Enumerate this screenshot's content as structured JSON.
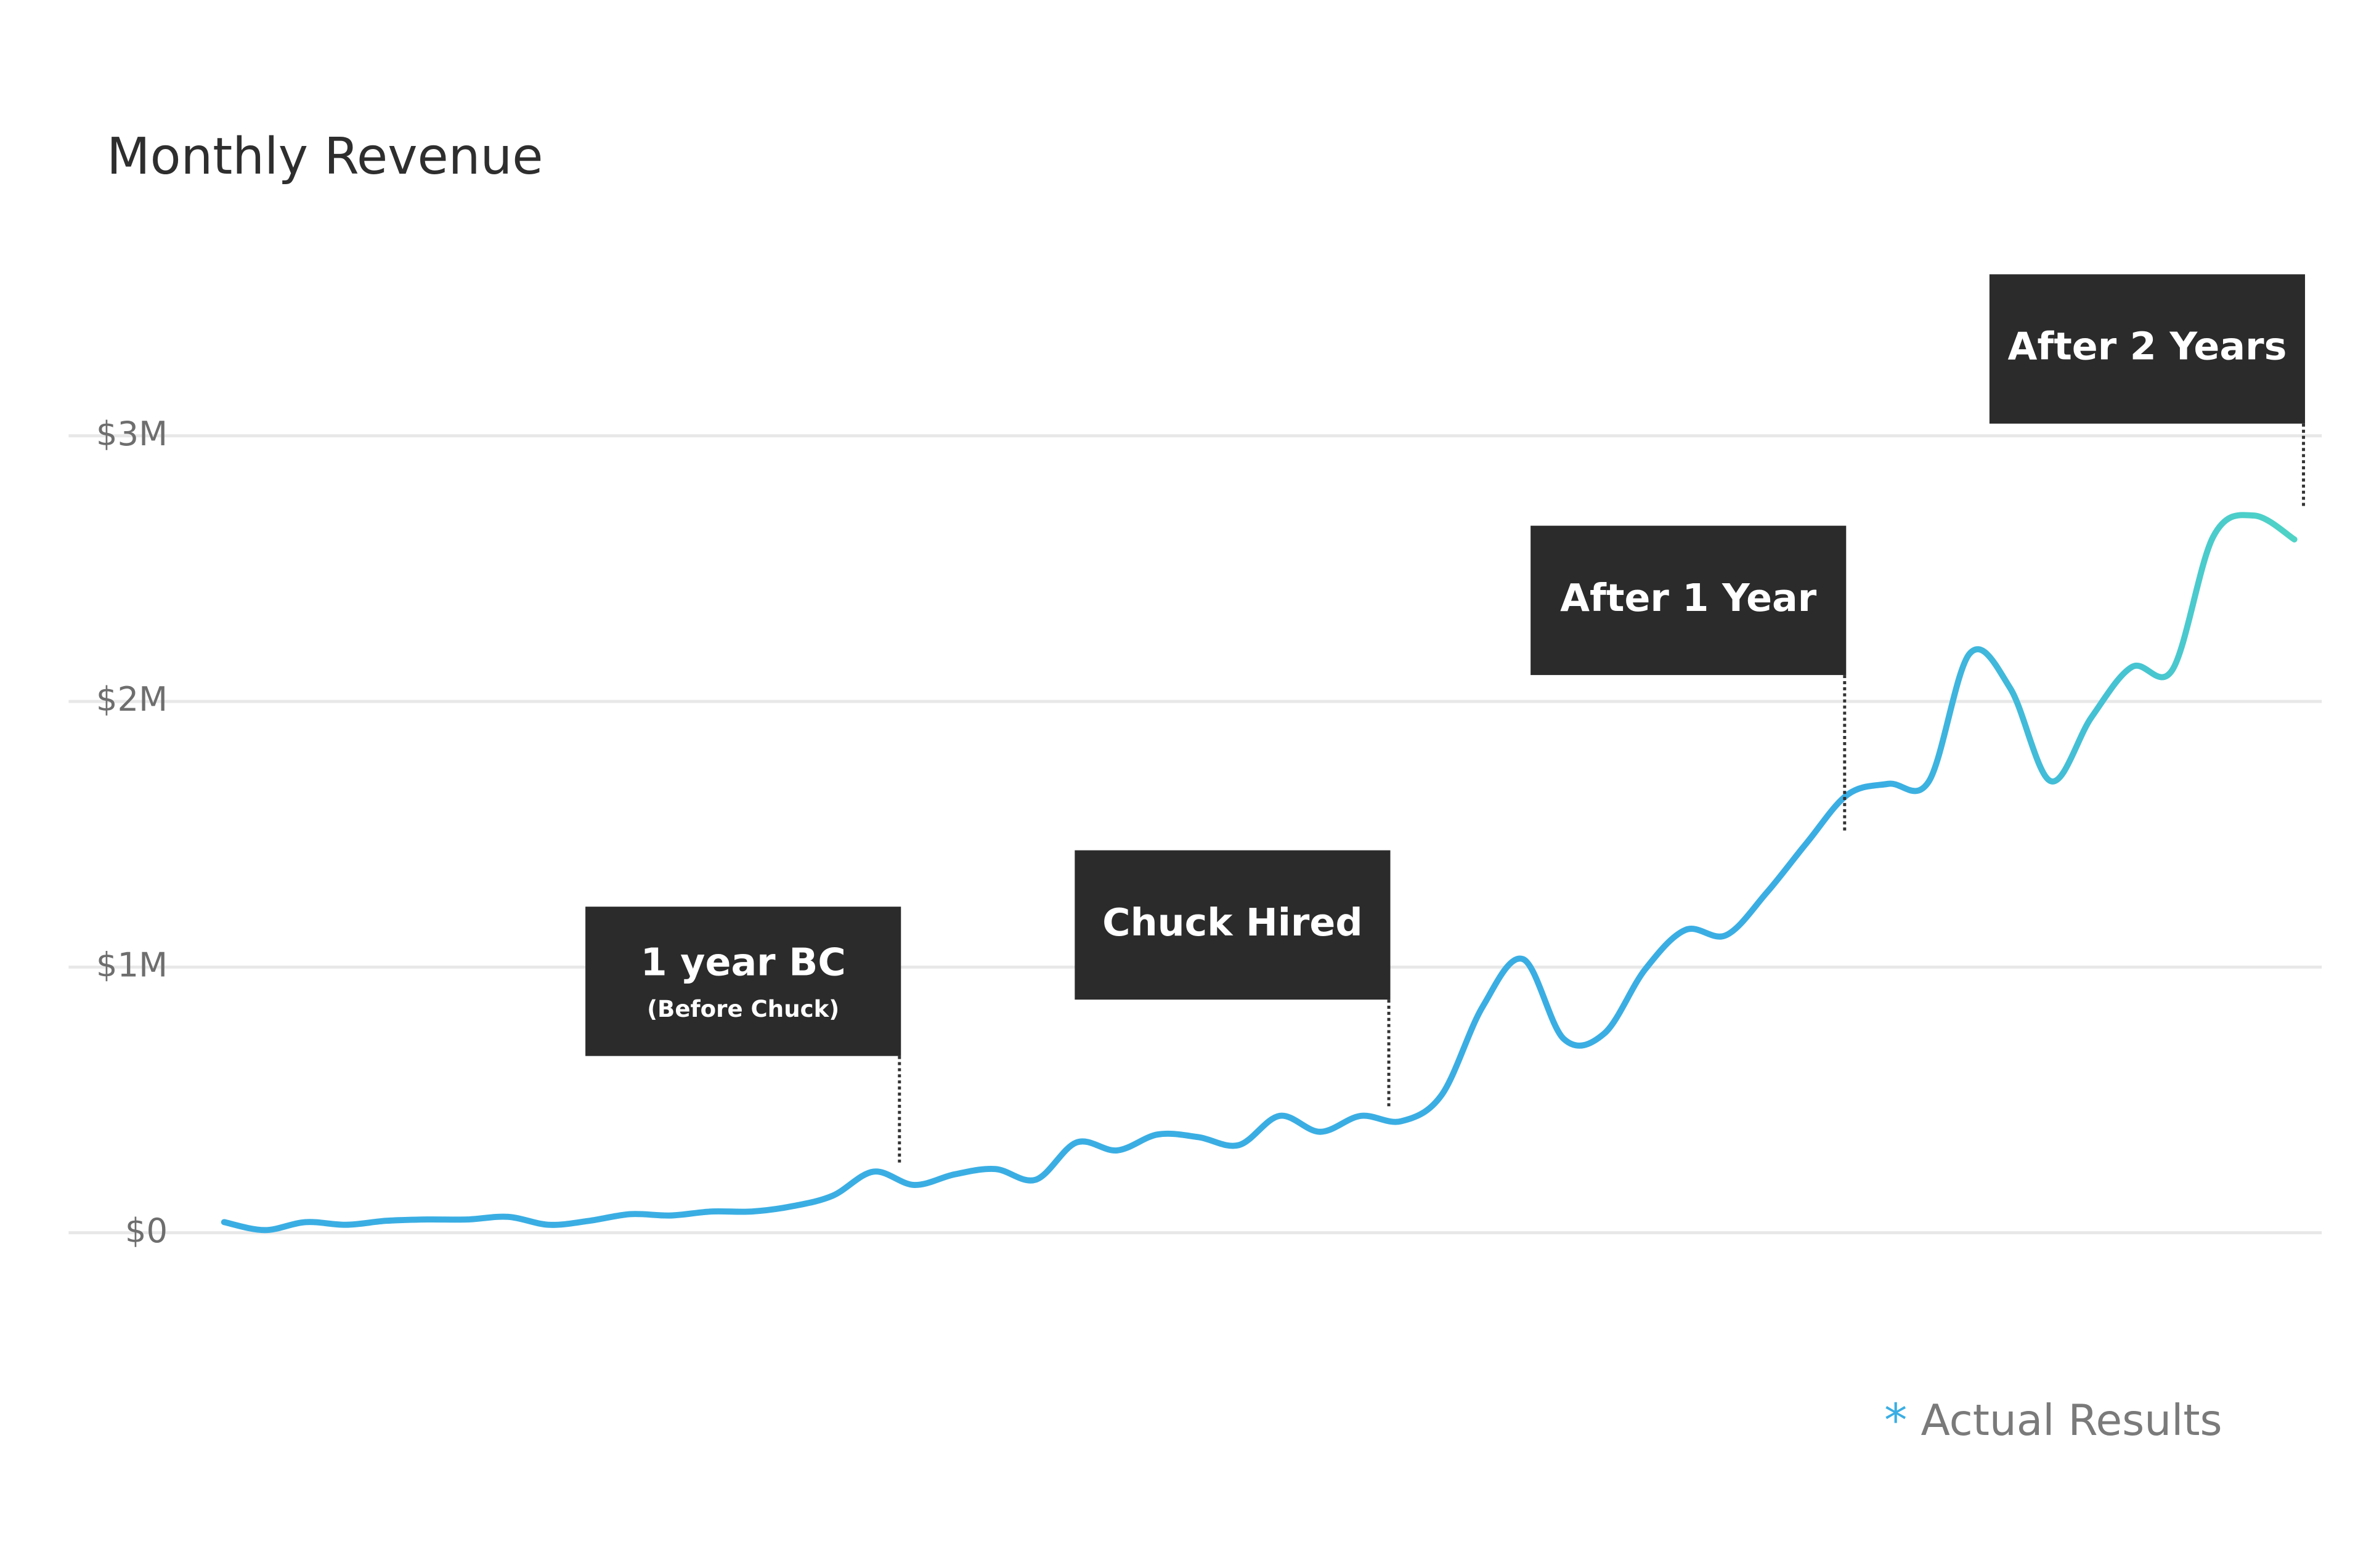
{
  "chart_data": {
    "type": "line",
    "title": "Monthly Revenue",
    "values": [
      40000,
      10000,
      40000,
      30000,
      45000,
      50000,
      50000,
      60000,
      30000,
      45000,
      70000,
      65000,
      80000,
      80000,
      100000,
      140000,
      230000,
      180000,
      220000,
      240000,
      200000,
      340000,
      310000,
      370000,
      360000,
      330000,
      440000,
      380000,
      440000,
      420000,
      520000,
      850000,
      1030000,
      730000,
      750000,
      990000,
      1140000,
      1120000,
      1280000,
      1470000,
      1650000,
      1690000,
      1700000,
      2180000,
      2050000,
      1700000,
      1940000,
      2130000,
      2120000,
      2620000,
      2700000,
      2610000
    ],
    "color": "#3aaee3",
    "color_end": "#4fd3c6",
    "ylim": [
      0,
      3000000
    ],
    "yticks": [
      {
        "value": 0,
        "label": "$0"
      },
      {
        "value": 1000000,
        "label": "$1M"
      },
      {
        "value": 2000000,
        "label": "$2M"
      },
      {
        "value": 3000000,
        "label": "$3M"
      }
    ],
    "grid": true,
    "annotations": [
      {
        "text": "1 year BC",
        "subtext": "(Before Chuck)"
      },
      {
        "text": "Chuck Hired"
      },
      {
        "text": "After 1 Year"
      },
      {
        "text": "After 2 Years"
      }
    ],
    "footnote_marker": "*",
    "footnote": "Actual Results"
  }
}
